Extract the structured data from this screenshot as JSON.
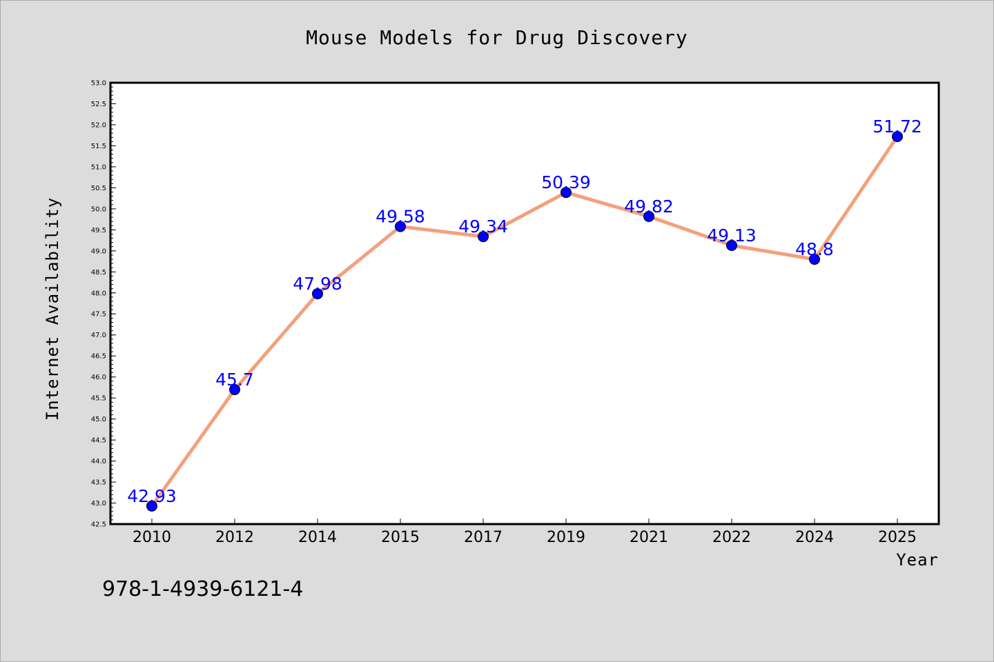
{
  "chart_data": {
    "type": "line",
    "title": "Mouse Models for Drug Discovery",
    "xlabel": "Year",
    "ylabel": "Internet Availability",
    "categories": [
      "2010",
      "2012",
      "2014",
      "2015",
      "2017",
      "2019",
      "2021",
      "2022",
      "2024",
      "2025"
    ],
    "values": [
      42.93,
      45.7,
      47.98,
      49.58,
      49.34,
      50.39,
      49.82,
      49.13,
      48.8,
      51.72
    ],
    "data_labels": [
      "42.93",
      "45.7",
      "47.98",
      "49.58",
      "49.34",
      "50.39",
      "49.82",
      "49.13",
      "48.8",
      "51.72"
    ],
    "ylim": [
      42.5,
      53.0
    ],
    "yticks": [
      "42.5",
      "43.0",
      "43.5",
      "44.0",
      "44.5",
      "45.0",
      "45.5",
      "46.0",
      "46.5",
      "47.0",
      "47.5",
      "48.0",
      "48.5",
      "49.0",
      "49.5",
      "50.0",
      "50.5",
      "51.0",
      "51.5",
      "52.0",
      "52.5",
      "53.0"
    ],
    "grid": false,
    "line_color": "#f4a07c",
    "marker_color": "#0000ff",
    "label_color": "#0000ff",
    "background_color": "#dcdcdc",
    "plot_background": "#ffffff"
  },
  "footnote": "978-1-4939-6121-4"
}
